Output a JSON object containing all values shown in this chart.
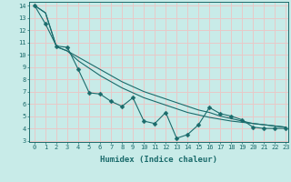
{
  "title": "",
  "xlabel": "Humidex (Indice chaleur)",
  "bg_color": "#c8ebe8",
  "grid_color": "#e8c8c8",
  "line_color": "#1a6b6b",
  "x_data": [
    0,
    1,
    2,
    3,
    4,
    5,
    6,
    7,
    8,
    9,
    10,
    11,
    12,
    13,
    14,
    15,
    16,
    17,
    18,
    19,
    20,
    21,
    22,
    23
  ],
  "y_zigzag": [
    14.0,
    12.5,
    10.7,
    10.6,
    8.8,
    6.9,
    6.8,
    6.2,
    5.8,
    6.5,
    4.6,
    4.4,
    5.3,
    3.2,
    3.5,
    4.3,
    5.7,
    5.2,
    5.0,
    4.7,
    4.1,
    4.0,
    4.0,
    4.0
  ],
  "y_line1": [
    14.0,
    13.4,
    10.65,
    10.3,
    9.8,
    9.3,
    8.8,
    8.3,
    7.8,
    7.4,
    7.0,
    6.7,
    6.4,
    6.1,
    5.8,
    5.5,
    5.3,
    5.0,
    4.8,
    4.6,
    4.4,
    4.3,
    4.2,
    4.1
  ],
  "y_line2": [
    14.0,
    13.4,
    10.65,
    10.3,
    9.5,
    8.9,
    8.3,
    7.8,
    7.3,
    6.9,
    6.5,
    6.2,
    5.9,
    5.6,
    5.3,
    5.1,
    4.9,
    4.75,
    4.6,
    4.5,
    4.4,
    4.3,
    4.2,
    4.1
  ],
  "ylim_min": 3,
  "ylim_max": 14,
  "xlim_min": 0,
  "xlim_max": 23,
  "yticks": [
    3,
    4,
    5,
    6,
    7,
    8,
    9,
    10,
    11,
    12,
    13,
    14
  ],
  "xticks": [
    0,
    1,
    2,
    3,
    4,
    5,
    6,
    7,
    8,
    9,
    10,
    11,
    12,
    13,
    14,
    15,
    16,
    17,
    18,
    19,
    20,
    21,
    22,
    23
  ],
  "tick_fontsize": 5.0,
  "xlabel_fontsize": 6.5,
  "marker_size": 2.5,
  "linewidth": 0.8
}
